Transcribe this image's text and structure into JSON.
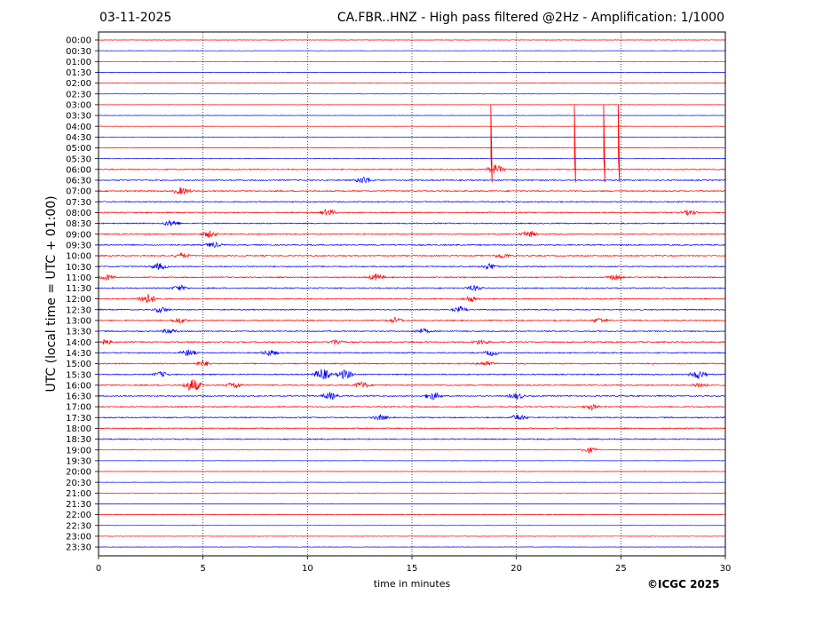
{
  "chart_data": {
    "type": "seismogram",
    "date": "03-11-2025",
    "title": "CA.FBR..HNZ - High pass filtered @2Hz - Amplification: 1/1000",
    "ylabel": "UTC (local time = UTC + 01:00)",
    "xlabel": "time in minutes",
    "xlim": [
      0,
      30
    ],
    "x_ticks": [
      0,
      5,
      10,
      15,
      20,
      25,
      30
    ],
    "x_tick_labels": [
      "0",
      "5",
      "10",
      "15",
      "20",
      "25",
      "30"
    ],
    "row_labels": [
      "00:00",
      "00:30",
      "01:00",
      "01:30",
      "02:00",
      "02:30",
      "03:00",
      "03:30",
      "04:00",
      "04:30",
      "05:00",
      "05:30",
      "06:00",
      "06:30",
      "07:00",
      "07:30",
      "08:00",
      "08:30",
      "09:00",
      "09:30",
      "10:00",
      "10:30",
      "11:00",
      "11:30",
      "12:00",
      "12:30",
      "13:00",
      "13:30",
      "14:00",
      "14:30",
      "15:00",
      "15:30",
      "16:00",
      "16:30",
      "17:00",
      "17:30",
      "18:00",
      "18:30",
      "19:00",
      "19:30",
      "20:00",
      "20:30",
      "21:00",
      "21:30",
      "22:00",
      "22:30",
      "23:00",
      "23:30"
    ],
    "trace_colors": [
      "#ff0000",
      "#0000ff"
    ],
    "vertical_gridlines": [
      5,
      10,
      15,
      20,
      25
    ],
    "spikes": [
      {
        "row": "05:30",
        "minute": 18.8
      },
      {
        "row": "05:30",
        "minute": 22.8
      },
      {
        "row": "05:30",
        "minute": 24.2
      },
      {
        "row": "05:30",
        "minute": 24.9
      }
    ],
    "events": [
      {
        "row": "06:00",
        "minute": 19.0,
        "amp": 0.5
      },
      {
        "row": "06:30",
        "minute": 12.7,
        "amp": 0.4
      },
      {
        "row": "07:00",
        "minute": 4.0,
        "amp": 0.4
      },
      {
        "row": "08:00",
        "minute": 11.0,
        "amp": 0.35
      },
      {
        "row": "08:00",
        "minute": 28.3,
        "amp": 0.3
      },
      {
        "row": "08:30",
        "minute": 3.5,
        "amp": 0.35
      },
      {
        "row": "09:00",
        "minute": 5.3,
        "amp": 0.35
      },
      {
        "row": "09:00",
        "minute": 20.6,
        "amp": 0.35
      },
      {
        "row": "09:30",
        "minute": 5.5,
        "amp": 0.3
      },
      {
        "row": "10:00",
        "minute": 4.0,
        "amp": 0.3
      },
      {
        "row": "10:00",
        "minute": 19.3,
        "amp": 0.3
      },
      {
        "row": "10:30",
        "minute": 2.9,
        "amp": 0.35
      },
      {
        "row": "10:30",
        "minute": 18.7,
        "amp": 0.35
      },
      {
        "row": "11:00",
        "minute": 0.4,
        "amp": 0.3
      },
      {
        "row": "11:00",
        "minute": 13.3,
        "amp": 0.35
      },
      {
        "row": "11:00",
        "minute": 24.7,
        "amp": 0.3
      },
      {
        "row": "11:30",
        "minute": 3.9,
        "amp": 0.3
      },
      {
        "row": "11:30",
        "minute": 18.0,
        "amp": 0.3
      },
      {
        "row": "12:00",
        "minute": 2.3,
        "amp": 0.55
      },
      {
        "row": "12:00",
        "minute": 17.8,
        "amp": 0.3
      },
      {
        "row": "12:30",
        "minute": 3.0,
        "amp": 0.3
      },
      {
        "row": "12:30",
        "minute": 17.3,
        "amp": 0.3
      },
      {
        "row": "13:00",
        "minute": 3.9,
        "amp": 0.3
      },
      {
        "row": "13:00",
        "minute": 14.2,
        "amp": 0.3
      },
      {
        "row": "13:00",
        "minute": 24.0,
        "amp": 0.3
      },
      {
        "row": "13:30",
        "minute": 3.4,
        "amp": 0.3
      },
      {
        "row": "13:30",
        "minute": 15.5,
        "amp": 0.3
      },
      {
        "row": "14:00",
        "minute": 0.3,
        "amp": 0.3
      },
      {
        "row": "14:00",
        "minute": 11.4,
        "amp": 0.3
      },
      {
        "row": "14:00",
        "minute": 18.3,
        "amp": 0.3
      },
      {
        "row": "14:30",
        "minute": 4.3,
        "amp": 0.35
      },
      {
        "row": "14:30",
        "minute": 8.2,
        "amp": 0.35
      },
      {
        "row": "14:30",
        "minute": 18.8,
        "amp": 0.3
      },
      {
        "row": "15:00",
        "minute": 5.0,
        "amp": 0.3
      },
      {
        "row": "15:00",
        "minute": 18.5,
        "amp": 0.3
      },
      {
        "row": "15:30",
        "minute": 3.0,
        "amp": 0.3
      },
      {
        "row": "15:30",
        "minute": 10.7,
        "amp": 0.6
      },
      {
        "row": "15:30",
        "minute": 11.8,
        "amp": 0.5
      },
      {
        "row": "15:30",
        "minute": 28.7,
        "amp": 0.45
      },
      {
        "row": "16:00",
        "minute": 4.5,
        "amp": 0.7
      },
      {
        "row": "16:00",
        "minute": 6.5,
        "amp": 0.35
      },
      {
        "row": "16:00",
        "minute": 12.6,
        "amp": 0.35
      },
      {
        "row": "16:00",
        "minute": 28.8,
        "amp": 0.3
      },
      {
        "row": "16:30",
        "minute": 11.1,
        "amp": 0.4
      },
      {
        "row": "16:30",
        "minute": 16.0,
        "amp": 0.4
      },
      {
        "row": "16:30",
        "minute": 20.0,
        "amp": 0.35
      },
      {
        "row": "17:00",
        "minute": 23.6,
        "amp": 0.3
      },
      {
        "row": "17:30",
        "minute": 13.5,
        "amp": 0.3
      },
      {
        "row": "17:30",
        "minute": 20.1,
        "amp": 0.35
      },
      {
        "row": "19:00",
        "minute": 23.5,
        "amp": 0.3
      }
    ],
    "copyright": "©ICGC 2025"
  }
}
